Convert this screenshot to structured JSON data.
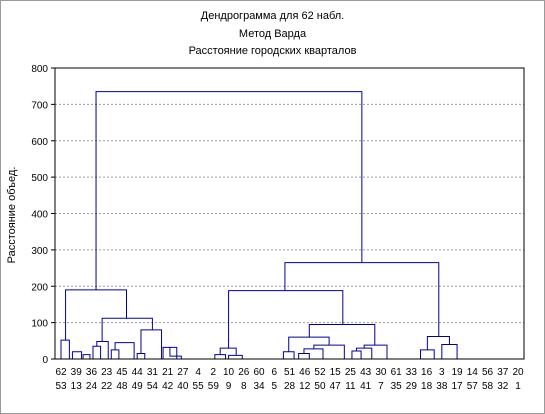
{
  "chart_data": {
    "type": "dendrogram",
    "title_lines": [
      "Дендрограмма для 62 набл.",
      "Метод Варда",
      "Расстояние городских кварталов"
    ],
    "xlabel": "",
    "ylabel": "Расстояние объед.",
    "ylim": [
      0,
      800
    ],
    "yticks": [
      0,
      100,
      200,
      300,
      400,
      500,
      600,
      700,
      800
    ],
    "grid": true,
    "leaf_labels_top": [
      "62",
      "39",
      "36",
      "23",
      "45",
      "44",
      "31",
      "21",
      "27",
      "4",
      "2",
      "10",
      "26",
      "60",
      "6",
      "51",
      "46",
      "52",
      "15",
      "25",
      "43",
      "30",
      "61",
      "33",
      "16",
      "3",
      "19",
      "14",
      "56",
      "37",
      "20"
    ],
    "leaf_labels_bottom": [
      "53",
      "13",
      "24",
      "22",
      "48",
      "49",
      "54",
      "42",
      "40",
      "55",
      "59",
      "9",
      "8",
      "34",
      "5",
      "28",
      "12",
      "50",
      "47",
      "11",
      "41",
      "7",
      "35",
      "29",
      "18",
      "38",
      "17",
      "57",
      "58",
      "32",
      "1"
    ],
    "merges": [
      {
        "height": 52
      },
      {
        "height": 20
      },
      {
        "height": 12
      },
      {
        "height": 35
      },
      {
        "height": 48
      },
      {
        "height": 112
      },
      {
        "height": 45
      },
      {
        "height": 25
      },
      {
        "height": 80
      },
      {
        "height": 15
      },
      {
        "height": 32
      },
      {
        "height": 8
      },
      {
        "height": 190
      },
      {
        "height": 30
      },
      {
        "height": 12
      },
      {
        "height": 10
      },
      {
        "height": 20
      },
      {
        "height": 38
      },
      {
        "height": 28
      },
      {
        "height": 15
      },
      {
        "height": 60
      },
      {
        "height": 95
      },
      {
        "height": 38
      },
      {
        "height": 30
      },
      {
        "height": 22
      },
      {
        "height": 188
      },
      {
        "height": 62
      },
      {
        "height": 40
      },
      {
        "height": 25
      },
      {
        "height": 265
      },
      {
        "height": 735
      }
    ]
  }
}
